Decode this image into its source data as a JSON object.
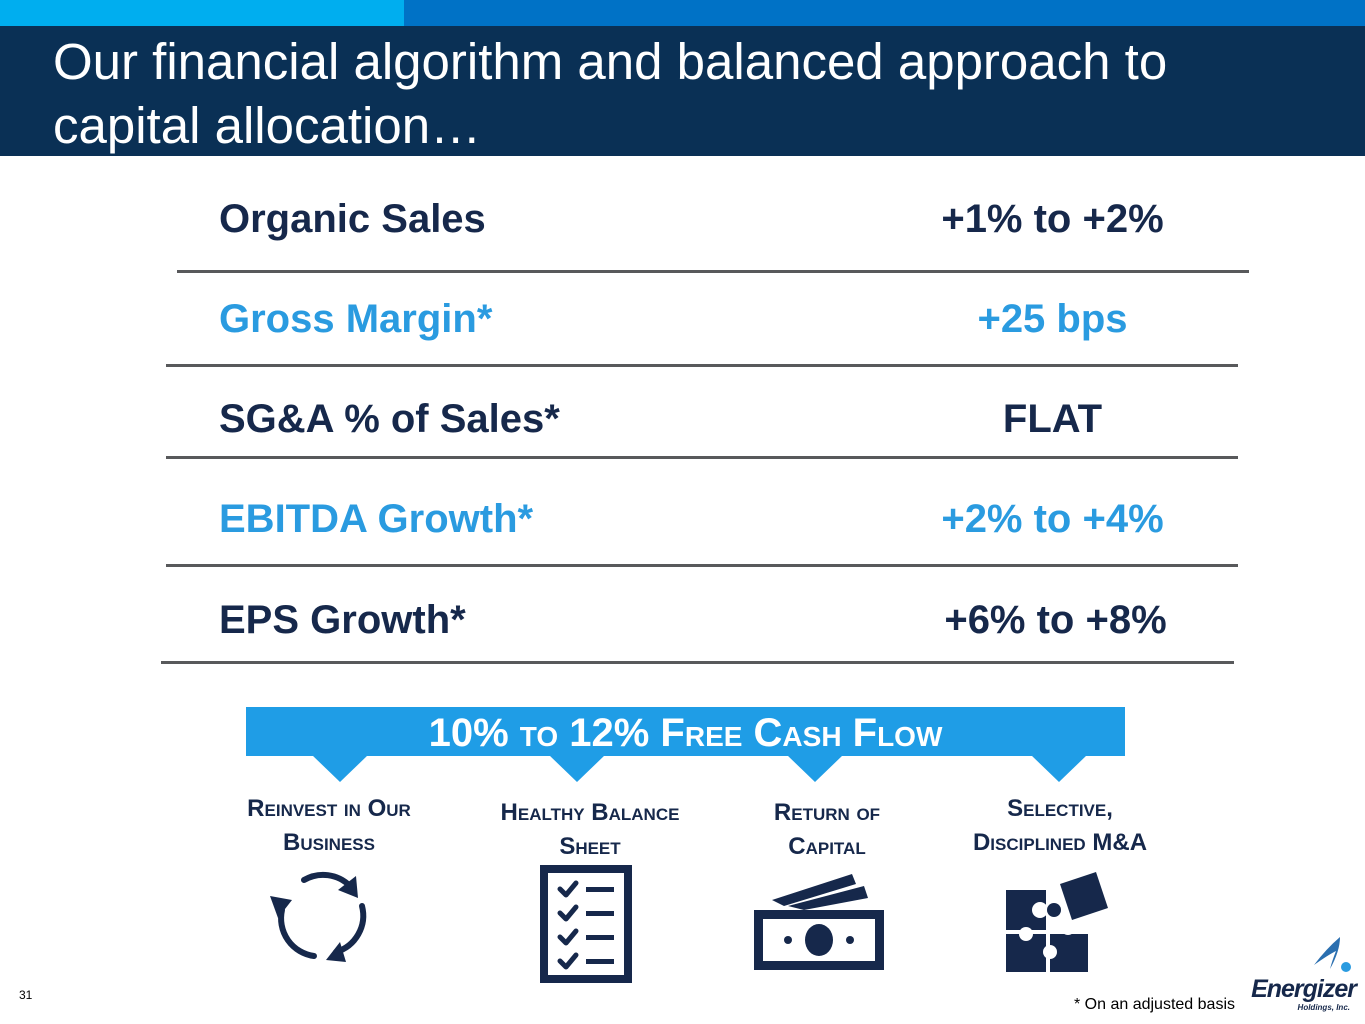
{
  "header": {
    "title": "Our financial algorithm and balanced approach to capital allocation…"
  },
  "metrics": [
    {
      "label": "Organic Sales",
      "value": "+1% to +2%"
    },
    {
      "label": "Gross Margin*",
      "value": "+25 bps"
    },
    {
      "label": "SG&A % of Sales*",
      "value": "FLAT"
    },
    {
      "label": "EBITDA Growth*",
      "value": "+2% to +4%"
    },
    {
      "label": "EPS Growth*",
      "value": "+6% to +8%"
    }
  ],
  "free_cash_flow": {
    "banner": "10% to 12% Free Cash Flow"
  },
  "uses": [
    {
      "line1": "Reinvest in Our",
      "line2": "Business",
      "icon": "refresh-cycle-icon"
    },
    {
      "line1": "Healthy Balance",
      "line2": "Sheet",
      "icon": "checklist-icon"
    },
    {
      "line1": "Return of",
      "line2": "Capital",
      "icon": "cash-icon"
    },
    {
      "line1": "Selective,",
      "line2": "Disciplined M&A",
      "icon": "puzzle-icon"
    }
  ],
  "footer": {
    "page_number": "31",
    "footnote": "* On an adjusted basis",
    "logo_name": "Energizer",
    "logo_sub": "Holdings, Inc."
  },
  "colors": {
    "title_band": "#0a3055",
    "accent_light": "#00aeef",
    "accent_dark": "#0072c6",
    "text_dark": "#16284b",
    "text_blue": "#2a9be0",
    "banner_blue": "#1f9de6"
  }
}
